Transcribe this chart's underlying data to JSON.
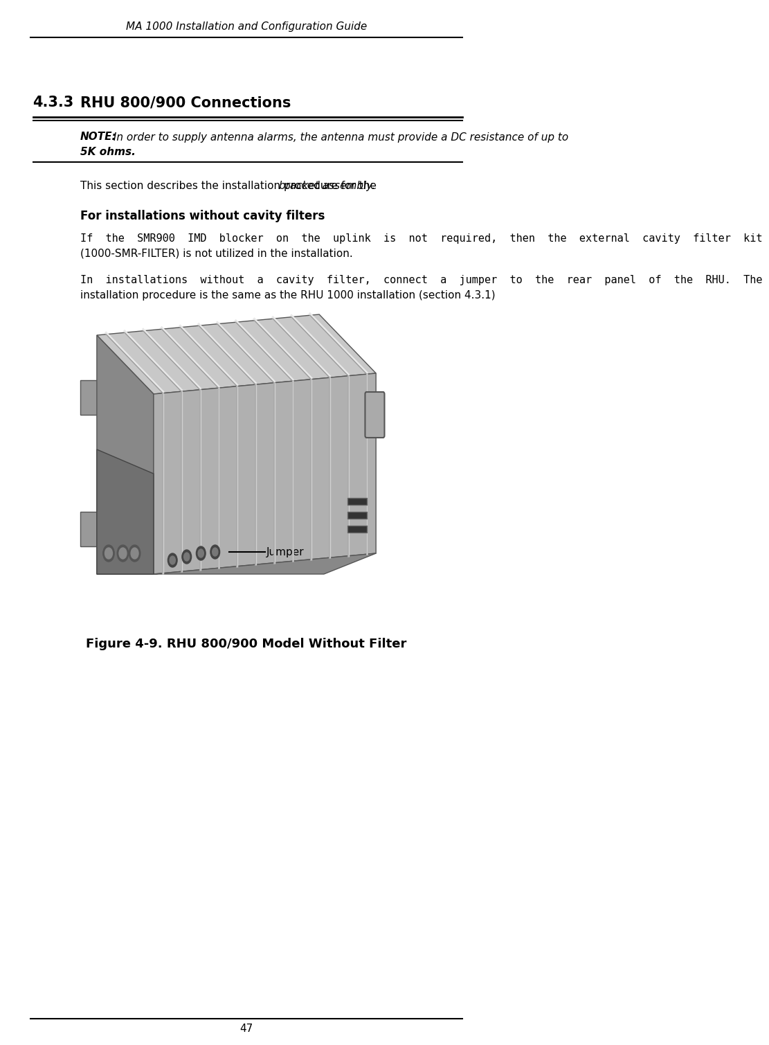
{
  "page_title": "MA 1000 Installation and Configuration Guide",
  "page_number": "47",
  "section_number": "4.3.3",
  "section_title": "RHU 800/900 Connections",
  "note_label": "NOTE:",
  "note_text": " In order to supply antenna alarms, the antenna must provide a DC resistance of up to 5K ohms.",
  "note_text_line1": " In order to supply antenna alarms, the antenna must provide a DC resistance of up to",
  "note_text_line2": "5K ohms.",
  "body_text1_normal": "This section describes the installation procedure for the ",
  "body_text1_italic": "bracket assembly.",
  "subheading": "For installations without cavity filters",
  "para1_line1": "If  the  SMR900  IMD  blocker  on  the  uplink  is  not  required,  then  the  external  cavity  filter  kit",
  "para1_line2": "(1000-SMR-FILTER) is not utilized in the installation.",
  "para2_line1": "In  installations  without  a  cavity  filter,  connect  a  jumper  to  the  rear  panel  of  the  RHU.  The",
  "para2_line2": "installation procedure is the same as the RHU 1000 installation (section 4.3.1)",
  "figure_caption": "Figure 4-9. RHU 800/900 Model Without Filter",
  "jumper_label": "Jumper",
  "bg_color": "#ffffff",
  "text_color": "#000000",
  "line_color": "#000000"
}
